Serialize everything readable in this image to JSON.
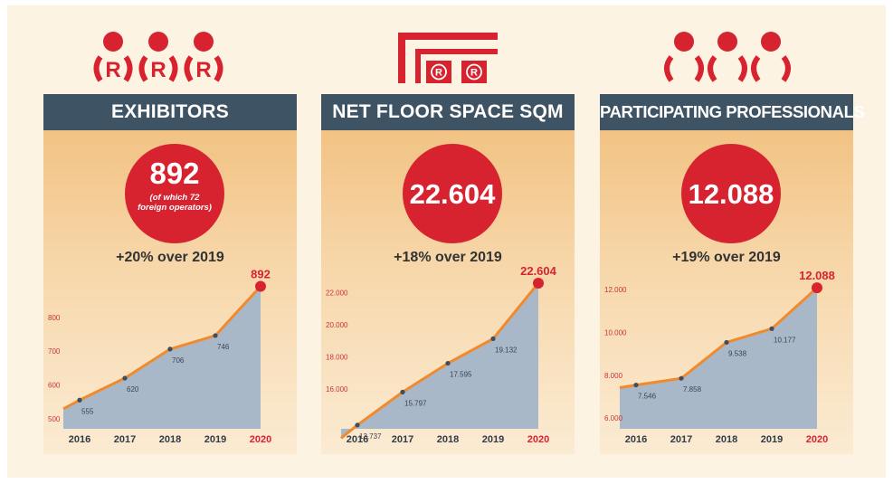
{
  "chart_data": [
    {
      "type": "area",
      "title": "EXHIBITORS",
      "headline": "892",
      "headline_note": "(of which 72 foreign operators)",
      "growth": "+20% over 2019",
      "x": [
        "2016",
        "2017",
        "2018",
        "2019",
        "2020"
      ],
      "values": [
        555,
        620,
        706,
        746,
        892
      ],
      "value_labels": [
        "555",
        "620",
        "706",
        "746",
        "892"
      ],
      "yticks": [
        500,
        600,
        700,
        800
      ],
      "ytick_labels": [
        "500",
        "600",
        "700",
        "800"
      ],
      "highlight_index": 4,
      "ylim": [
        470,
        920
      ]
    },
    {
      "type": "area",
      "title": "NET FLOOR SPACE SQM",
      "headline": "22.604",
      "growth": "+18% over 2019",
      "x": [
        "2016",
        "2017",
        "2018",
        "2019",
        "2020"
      ],
      "values": [
        13737,
        15797,
        17595,
        19132,
        22604
      ],
      "value_labels": [
        "13.737",
        "15.797",
        "17.595",
        "19.132",
        "22.604"
      ],
      "yticks": [
        16000,
        18000,
        20000,
        22000
      ],
      "ytick_labels": [
        "16.000",
        "18.000",
        "20.000",
        "22.000"
      ],
      "highlight_index": 4,
      "ylim": [
        13500,
        23000
      ]
    },
    {
      "type": "area",
      "title": "PARTICIPATING PROFESSIONALS",
      "headline": "12.088",
      "growth": "+19% over 2019",
      "x": [
        "2016",
        "2017",
        "2018",
        "2019",
        "2020"
      ],
      "values": [
        7546,
        7858,
        9538,
        10177,
        12088
      ],
      "value_labels": [
        "7.546",
        "7.858",
        "9.538",
        "10.177",
        "12.088"
      ],
      "yticks": [
        6000,
        8000,
        10000,
        12000
      ],
      "ytick_labels": [
        "6.000",
        "8.000",
        "10.000",
        "12.000"
      ],
      "highlight_index": 4,
      "ylim": [
        5500,
        12600
      ]
    }
  ],
  "colors": {
    "accent_red": "#d72330",
    "header_blue": "#3e5364",
    "area_fill": "#a9b8c8",
    "line_orange": "#f08a2d",
    "point_dark": "#3f4d5d",
    "tick_red": "#c9343c"
  },
  "icons": [
    "exhibitors-icon",
    "floor-space-icon",
    "professionals-icon"
  ]
}
